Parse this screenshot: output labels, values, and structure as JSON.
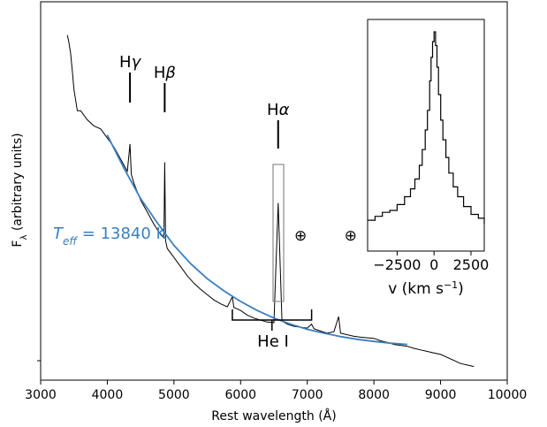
{
  "chart_data": [
    {
      "type": "line",
      "xlabel": "Rest wavelength (Å)",
      "ylabel": "F",
      "ylabel_sub": "λ",
      "ylabel_rest": " (arbitrary units)",
      "xlim": [
        3000,
        10000
      ],
      "x_ticks": [
        3000,
        4000,
        5000,
        6000,
        7000,
        8000,
        9000,
        10000
      ],
      "y_tick_values": [
        0
      ],
      "annotation_teff_label": "T",
      "annotation_teff_sub": "eff",
      "annotation_teff_value": " =  13840 K",
      "teff_color": "#3b7fbf",
      "line_labels": [
        {
          "prefix": "H",
          "greek": "γ",
          "x": 4340
        },
        {
          "prefix": "H",
          "greek": "β",
          "x": 4861
        },
        {
          "prefix": "H",
          "greek": "α",
          "x": 6563
        }
      ],
      "he_label": "He I",
      "he_range": [
        5876,
        7065
      ],
      "telluric": [
        {
          "symbol": "⊕",
          "x": 6900
        },
        {
          "symbol": "⊕",
          "x": 7650
        }
      ],
      "series": [
        {
          "color": "#000000",
          "x": [
            3400,
            3420,
            3450,
            3480,
            3500,
            3550,
            3600,
            3700,
            3800,
            3900,
            4000,
            4100,
            4200,
            4300,
            4340,
            4360,
            4400,
            4500,
            4600,
            4700,
            4800,
            4850,
            4861,
            4875,
            4900,
            5000,
            5100,
            5200,
            5300,
            5400,
            5500,
            5600,
            5700,
            5800,
            5876,
            5900,
            6000,
            6100,
            6200,
            6300,
            6400,
            6500,
            6563,
            6620,
            6700,
            6800,
            6900,
            7000,
            7065,
            7100,
            7200,
            7300,
            7400,
            7470,
            7500,
            7600,
            7700,
            7800,
            7900,
            8000,
            8100,
            8200,
            8300,
            8400,
            8500,
            8600,
            8700,
            8800,
            8900,
            9000,
            9100,
            9200,
            9300,
            9400,
            9500
          ],
          "y": [
            10.4,
            10.2,
            9.8,
            9.1,
            8.6,
            7.9,
            7.9,
            7.6,
            7.4,
            7.3,
            7.0,
            6.7,
            6.3,
            5.9,
            6.8,
            5.8,
            5.5,
            4.95,
            4.55,
            4.15,
            3.8,
            3.7,
            6.2,
            3.6,
            3.35,
            3.05,
            2.75,
            2.45,
            2.2,
            2.0,
            1.82,
            1.65,
            1.52,
            1.42,
            1.75,
            1.4,
            1.3,
            1.15,
            1.05,
            0.98,
            0.92,
            0.9,
            4.85,
            0.95,
            0.85,
            0.78,
            0.75,
            0.72,
            0.85,
            0.7,
            0.62,
            0.55,
            0.6,
            1.1,
            0.55,
            0.5,
            0.45,
            0.42,
            0.4,
            0.38,
            0.3,
            0.25,
            0.18,
            0.15,
            0.12,
            0.05,
            0.0,
            -0.05,
            -0.1,
            -0.15,
            -0.25,
            -0.35,
            -0.45,
            -0.5,
            -0.55
          ]
        },
        {
          "color": "#3b7fbf",
          "x": [
            4000,
            4250,
            4500,
            4750,
            5000,
            5250,
            5500,
            5750,
            6000,
            6250,
            6500,
            6750,
            7000,
            7250,
            7500,
            7750,
            8000,
            8250,
            8500
          ],
          "y": [
            7.1,
            6.0,
            5.0,
            4.2,
            3.45,
            2.85,
            2.35,
            1.95,
            1.6,
            1.3,
            1.05,
            0.85,
            0.68,
            0.55,
            0.44,
            0.35,
            0.28,
            0.22,
            0.18
          ]
        }
      ]
    },
    {
      "type": "line",
      "xlabel": "v (km s",
      "xlabel_sup": "−1",
      "xlabel_end": ")",
      "xlim": [
        -4500,
        3400
      ],
      "x_ticks": [
        -2500,
        0,
        2500
      ],
      "x_tick_labels": [
        "−2500",
        "0",
        "2500"
      ],
      "series": [
        {
          "color": "#000000",
          "x": [
            -4500,
            -4000,
            -3500,
            -3000,
            -2500,
            -2000,
            -1600,
            -1300,
            -1000,
            -800,
            -600,
            -450,
            -300,
            -200,
            -100,
            0,
            100,
            200,
            300,
            450,
            600,
            800,
            1000,
            1300,
            1600,
            2000,
            2500,
            3000,
            3400
          ],
          "y": [
            0.04,
            0.06,
            0.08,
            0.09,
            0.12,
            0.16,
            0.2,
            0.25,
            0.32,
            0.4,
            0.5,
            0.6,
            0.75,
            0.87,
            0.95,
            1.0,
            0.93,
            0.82,
            0.68,
            0.55,
            0.45,
            0.36,
            0.28,
            0.21,
            0.16,
            0.11,
            0.07,
            0.05,
            0.02
          ]
        }
      ]
    }
  ]
}
